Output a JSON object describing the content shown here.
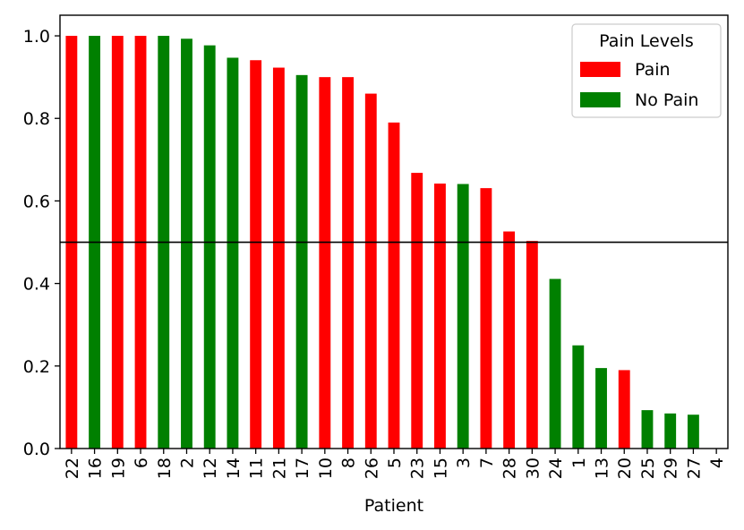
{
  "chart_data": {
    "type": "bar",
    "title": "",
    "xlabel": "Patient",
    "ylabel": "",
    "ylim": [
      0,
      1.05
    ],
    "yticks": [
      "0.0",
      "0.2",
      "0.4",
      "0.6",
      "0.8",
      "1.0"
    ],
    "threshold": 0.5,
    "grid": false,
    "legend": {
      "title": "Pain Levels",
      "placement": "top-right",
      "entries": [
        {
          "label": "Pain",
          "color": "#ff0000"
        },
        {
          "label": "No Pain",
          "color": "#008000"
        }
      ]
    },
    "categories": [
      "22",
      "16",
      "19",
      "6",
      "18",
      "2",
      "12",
      "14",
      "11",
      "21",
      "17",
      "10",
      "8",
      "26",
      "5",
      "23",
      "15",
      "3",
      "7",
      "28",
      "30",
      "24",
      "1",
      "13",
      "20",
      "25",
      "29",
      "27",
      "4"
    ],
    "values": [
      1.0,
      1.0,
      1.0,
      1.0,
      1.0,
      0.993,
      0.977,
      0.947,
      0.941,
      0.923,
      0.905,
      0.9,
      0.9,
      0.86,
      0.79,
      0.668,
      0.642,
      0.641,
      0.631,
      0.526,
      0.503,
      0.411,
      0.25,
      0.195,
      0.19,
      0.093,
      0.085,
      0.082,
      0.0
    ],
    "groups": [
      "Pain",
      "No Pain",
      "Pain",
      "Pain",
      "No Pain",
      "No Pain",
      "No Pain",
      "No Pain",
      "Pain",
      "Pain",
      "No Pain",
      "Pain",
      "Pain",
      "Pain",
      "Pain",
      "Pain",
      "Pain",
      "No Pain",
      "Pain",
      "Pain",
      "Pain",
      "No Pain",
      "No Pain",
      "No Pain",
      "Pain",
      "No Pain",
      "No Pain",
      "No Pain",
      "No Pain"
    ]
  }
}
